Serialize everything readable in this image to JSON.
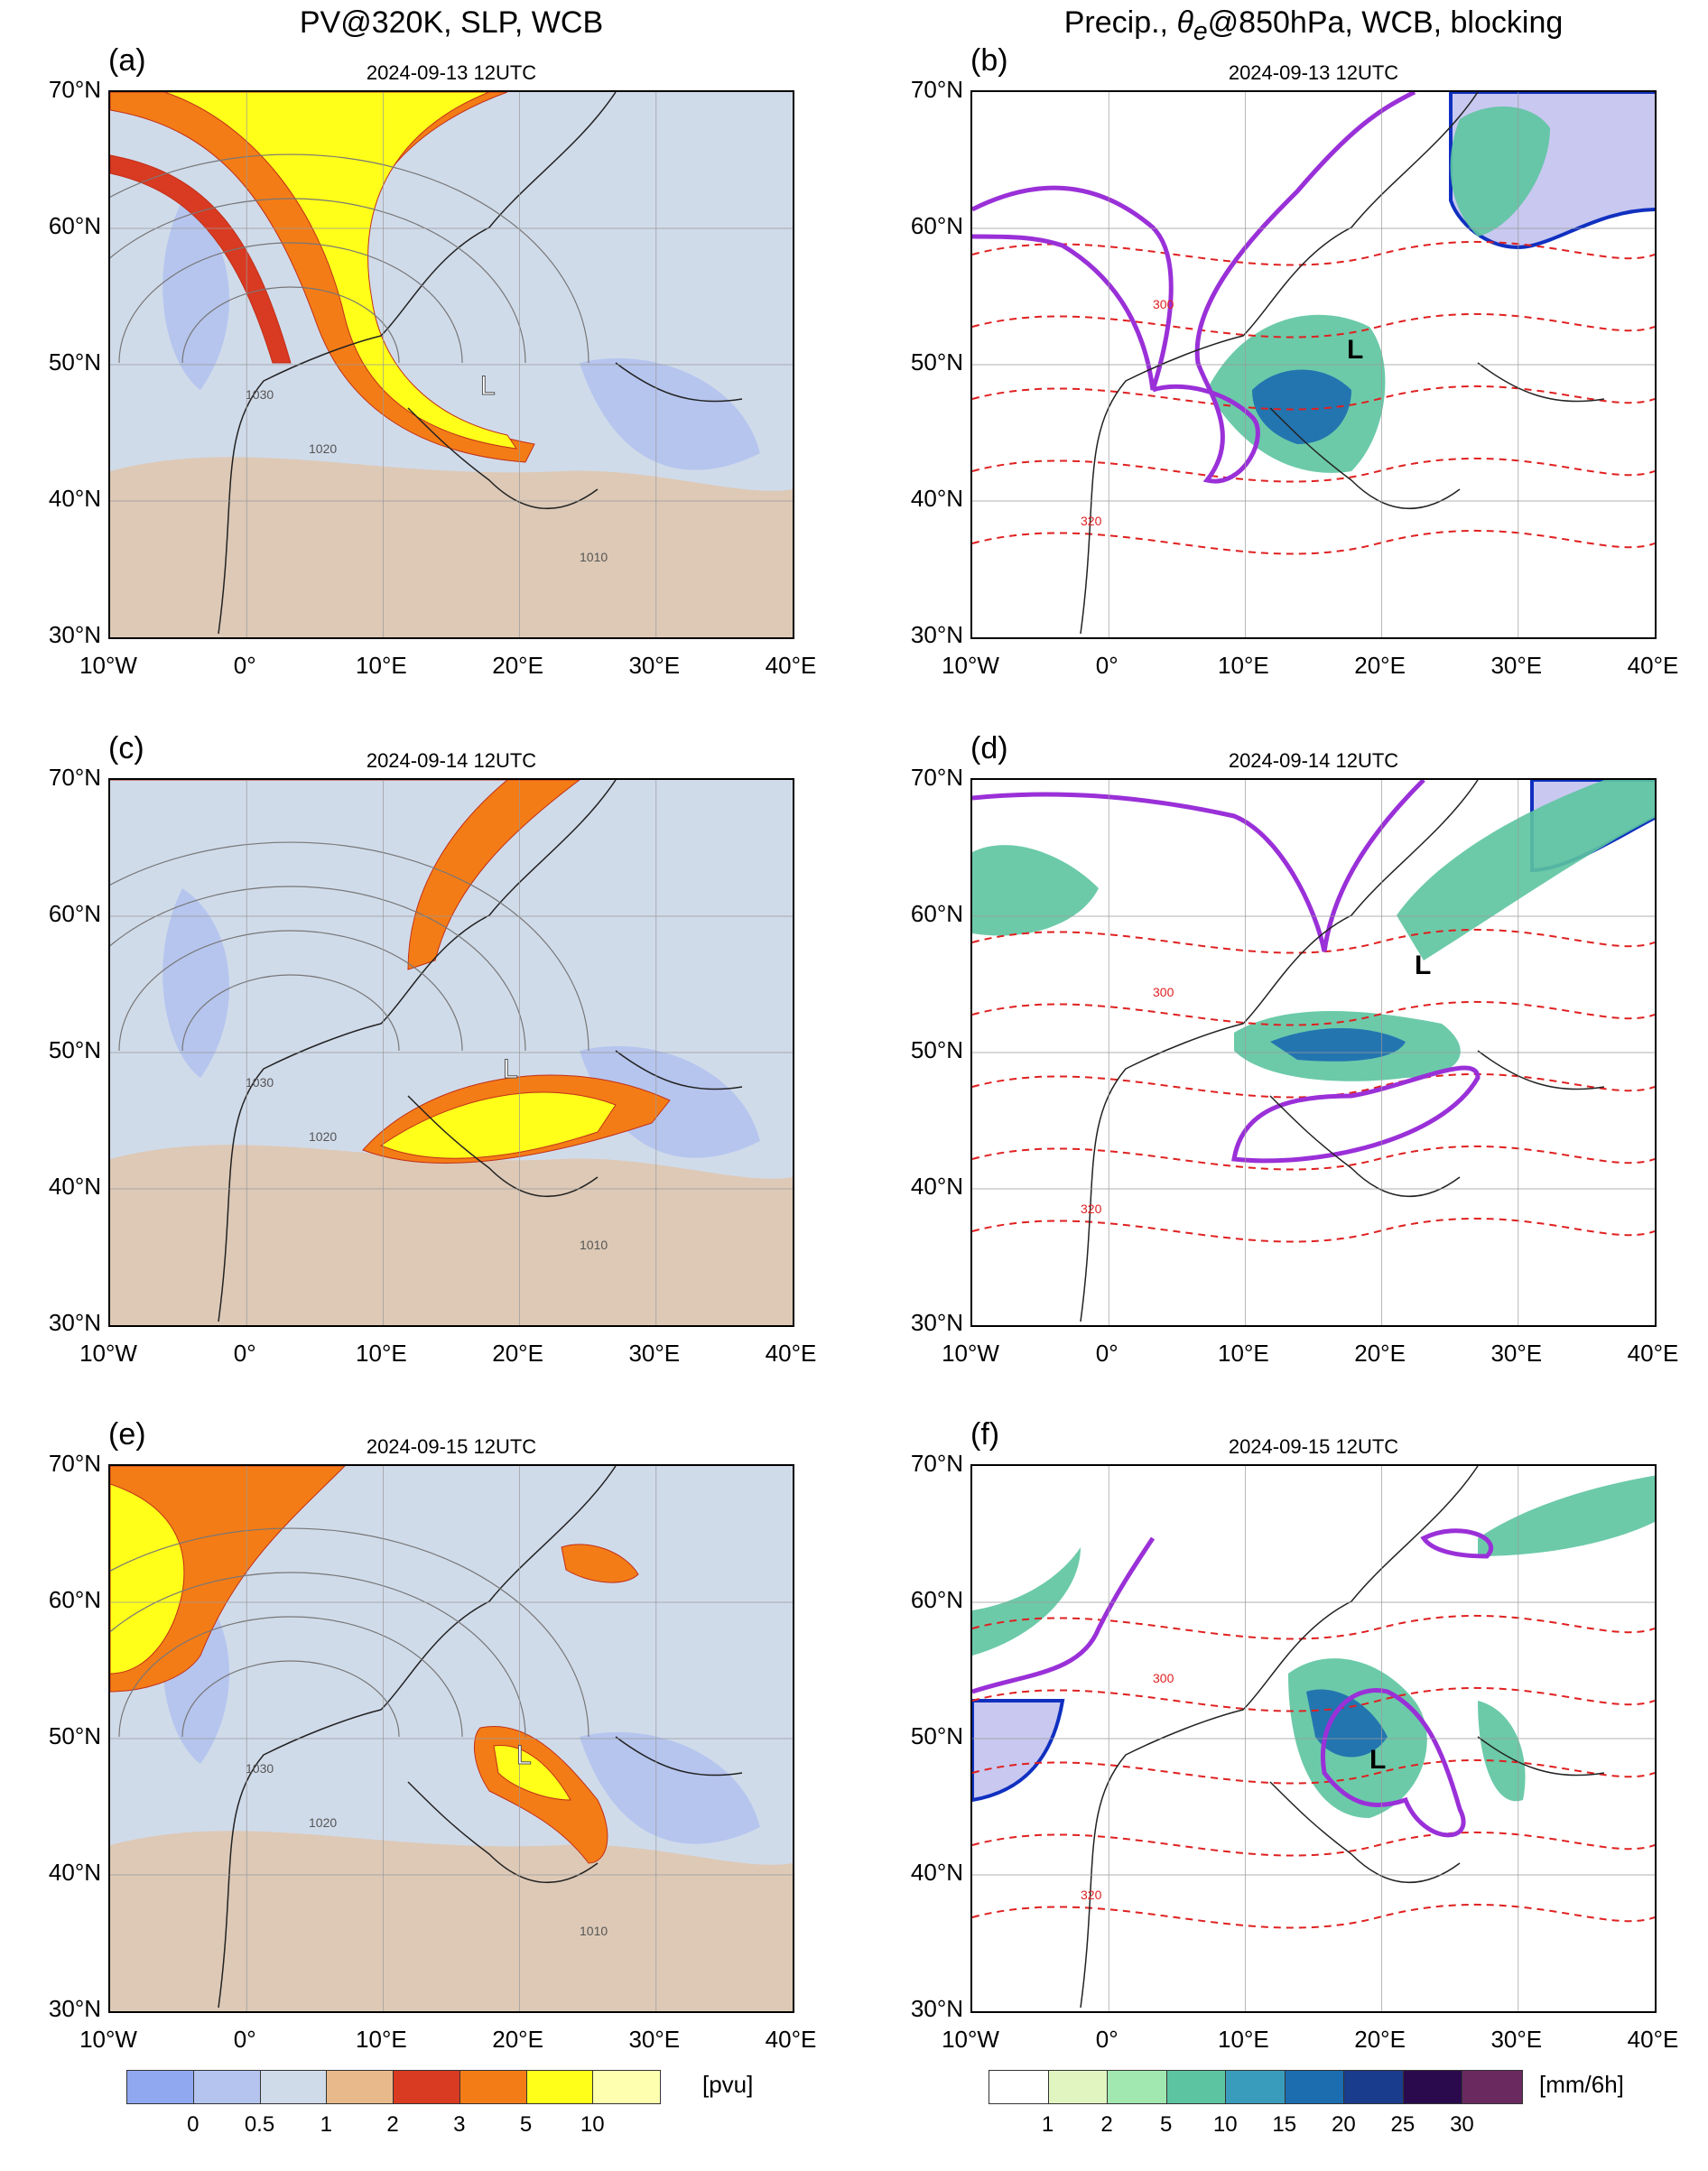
{
  "titles": {
    "left": "PV@320K, SLP, WCB",
    "right_prefix": "Precip., ",
    "right_theta": "θ",
    "right_theta_sub": "e",
    "right_suffix": "@850hPa, WCB, blocking"
  },
  "panels": [
    {
      "label": "(a)",
      "date": "2024-09-13 12UTC",
      "kind": "pv",
      "low": "L"
    },
    {
      "label": "(b)",
      "date": "2024-09-13 12UTC",
      "kind": "precip",
      "low": "L"
    },
    {
      "label": "(c)",
      "date": "2024-09-14 12UTC",
      "kind": "pv",
      "low": "L"
    },
    {
      "label": "(d)",
      "date": "2024-09-14 12UTC",
      "kind": "precip",
      "low": "L"
    },
    {
      "label": "(e)",
      "date": "2024-09-15 12UTC",
      "kind": "pv",
      "low": "L"
    },
    {
      "label": "(f)",
      "date": "2024-09-15 12UTC",
      "kind": "precip",
      "low": "L"
    }
  ],
  "axes": {
    "lat_ticks": [
      "70°N",
      "60°N",
      "50°N",
      "40°N",
      "30°N"
    ],
    "lon_ticks": [
      "10°W",
      "0°",
      "10°E",
      "20°E",
      "30°E",
      "40°E"
    ]
  },
  "contour_labels": {
    "slp": [
      "1010",
      "1020",
      "1030"
    ],
    "theta_e": [
      "300",
      "320"
    ]
  },
  "colorbar_pv": {
    "unit": "[pvu]",
    "ticks": [
      "0",
      "0.5",
      "1",
      "2",
      "3",
      "5",
      "10"
    ],
    "colors": [
      "#8fa8f0",
      "#b4c4ee",
      "#d0dbea",
      "#e8b98a",
      "#d93a22",
      "#f47c16",
      "#ffff1a",
      "#ffffb0"
    ]
  },
  "colorbar_precip": {
    "unit": "[mm/6h]",
    "ticks": [
      "1",
      "2",
      "5",
      "10",
      "15",
      "20",
      "25",
      "30"
    ],
    "colors": [
      "#ffffff",
      "#e0f5c0",
      "#a0e8b0",
      "#5cc4a0",
      "#3a9cbc",
      "#1c6cb0",
      "#1a3c8c",
      "#2a0a4c",
      "#6a2a60"
    ]
  }
}
